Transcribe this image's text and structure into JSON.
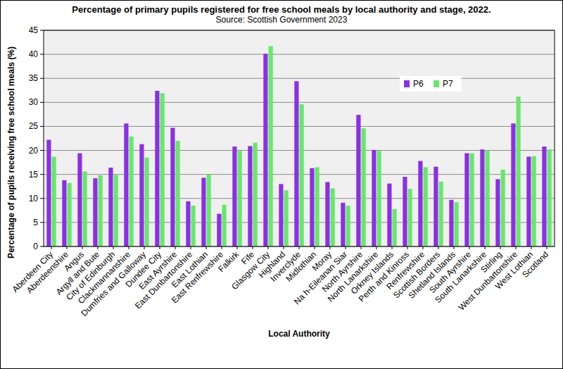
{
  "chart_data": {
    "type": "bar",
    "title": "Percentage of primary pupils registered for free school meals by local authority and stage, 2022.",
    "subtitle": "Source: Scottish Government 2023",
    "x_label": "Local Authority",
    "y_label": "Percentage of pupils receiving free school meals (%)",
    "categories": [
      "Aberdeen City",
      "Aberdeenshire",
      "Angus",
      "Argyll and Bute",
      "City of Edinburgh",
      "Clackmannanshire",
      "Dumfries and Galloway",
      "Dundee City",
      "East Ayrshire",
      "East Dunbartonshire",
      "East Lothian",
      "East Renfrewshire",
      "Falkirk",
      "Fife",
      "Glasgow City",
      "Highland",
      "Inverclyde",
      "Midlothian",
      "Moray",
      "Na h-Eileanan Siar",
      "North Ayrshire",
      "North Lanarkshire",
      "Orkney Islands",
      "Perth and Kinross",
      "Renfrewshire",
      "Scottish Borders",
      "Shetland Islands",
      "South Ayrshire",
      "South Lanarkshire",
      "Stirling",
      "West Dunbartonshire",
      "West Lothian",
      "Scotland"
    ],
    "series": [
      {
        "name": "P6",
        "color": "#8c2ee6",
        "values": [
          22.2,
          13.8,
          19.4,
          14.2,
          16.4,
          25.6,
          21.3,
          32.4,
          24.7,
          9.4,
          14.3,
          6.8,
          20.8,
          20.9,
          40.1,
          13.0,
          34.4,
          16.3,
          13.4,
          9.1,
          27.4,
          20.1,
          13.1,
          14.5,
          17.8,
          16.6,
          9.7,
          19.4,
          20.2,
          14.0,
          25.6,
          18.7,
          20.8
        ]
      },
      {
        "name": "P7",
        "color": "#66e86a",
        "values": [
          18.7,
          13.2,
          15.6,
          14.8,
          14.9,
          22.9,
          18.5,
          31.9,
          22.0,
          8.5,
          15.0,
          8.7,
          19.9,
          21.6,
          41.7,
          11.7,
          29.6,
          16.5,
          12.1,
          8.5,
          24.6,
          19.9,
          7.8,
          12.0,
          16.5,
          13.5,
          9.2,
          19.4,
          20.0,
          16.0,
          31.2,
          18.8,
          20.2
        ]
      }
    ],
    "ylim": [
      0,
      45
    ],
    "yticks": [
      0,
      5,
      10,
      15,
      20,
      25,
      30,
      35,
      40,
      45
    ],
    "grid": true,
    "legend": "top-right"
  }
}
